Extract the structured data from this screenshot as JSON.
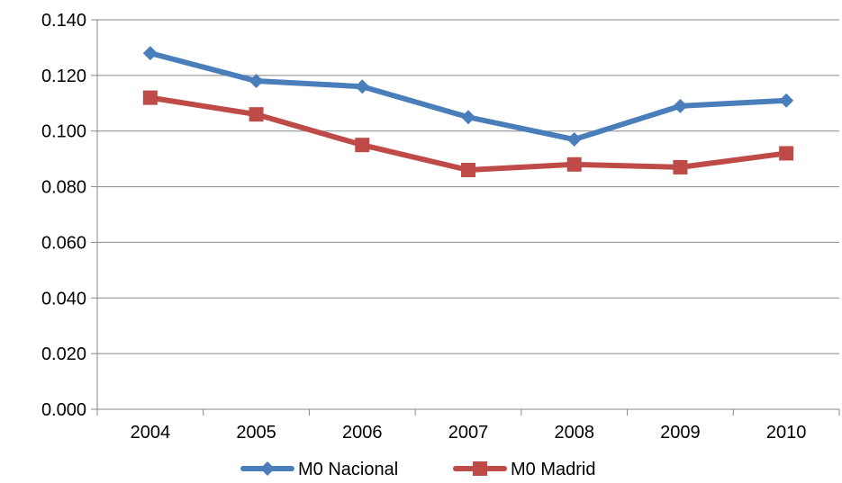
{
  "chart_data": {
    "type": "line",
    "categories": [
      "2004",
      "2005",
      "2006",
      "2007",
      "2008",
      "2009",
      "2010"
    ],
    "series": [
      {
        "name": "M0 Nacional",
        "color": "#4a7ebb",
        "marker": "diamond",
        "values": [
          0.128,
          0.118,
          0.116,
          0.105,
          0.097,
          0.109,
          0.111
        ]
      },
      {
        "name": "M0 Madrid",
        "color": "#be4b48",
        "marker": "square",
        "values": [
          0.112,
          0.106,
          0.095,
          0.086,
          0.088,
          0.087,
          0.092
        ]
      }
    ],
    "ylim": [
      0,
      0.14
    ],
    "yticks": [
      "0.000",
      "0.020",
      "0.040",
      "0.060",
      "0.080",
      "0.100",
      "0.120",
      "0.140"
    ],
    "grid": true,
    "legend_position": "bottom",
    "title": "",
    "xlabel": "",
    "ylabel": ""
  }
}
